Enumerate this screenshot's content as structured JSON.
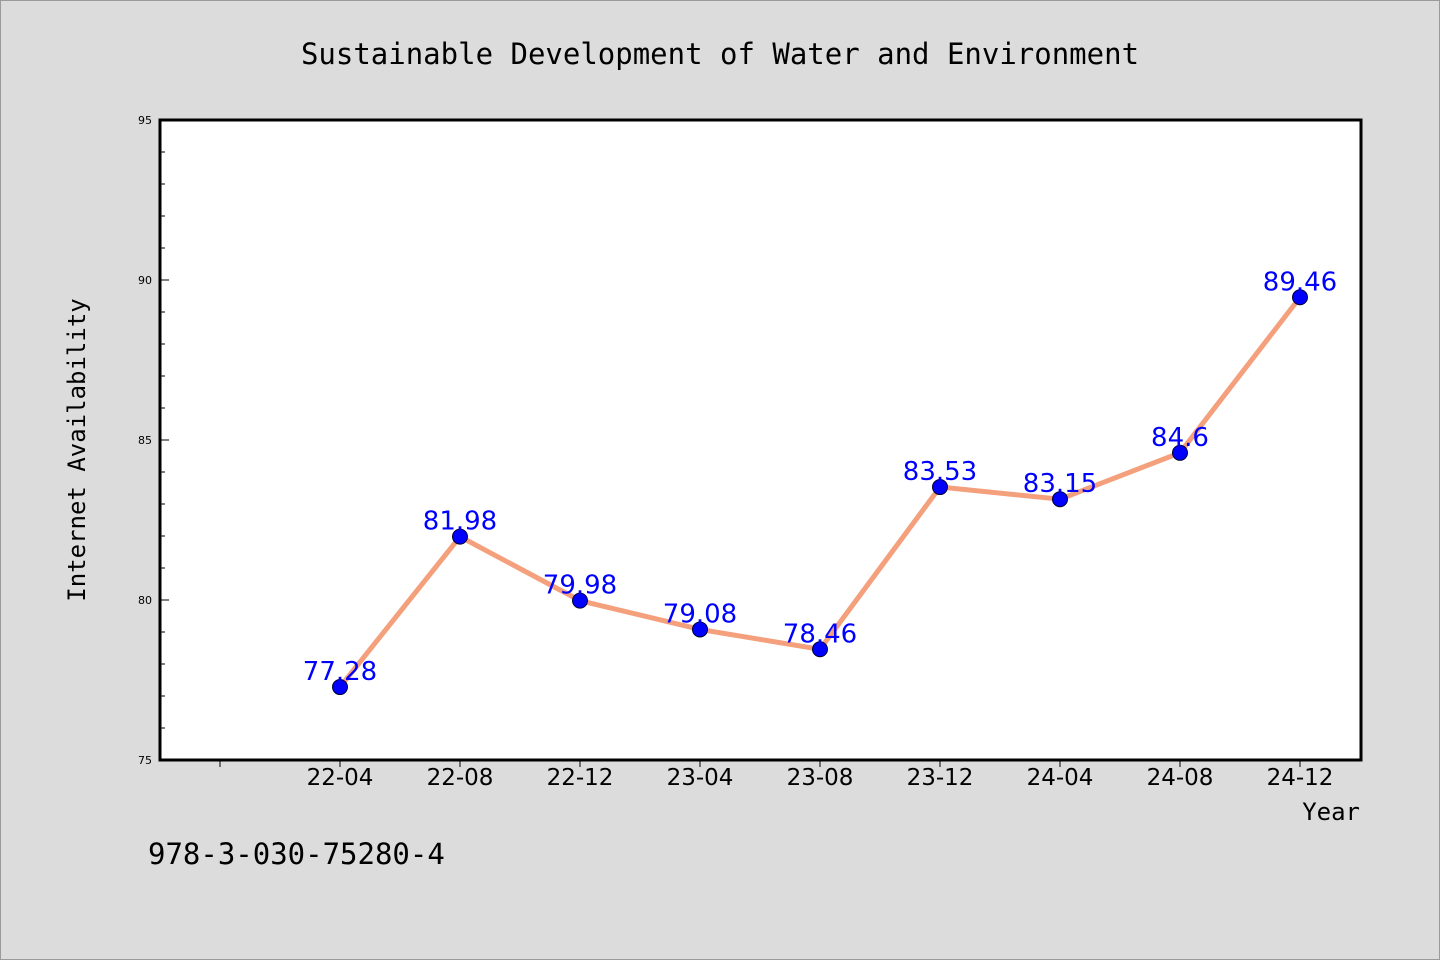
{
  "chart_data": {
    "type": "line",
    "title": "Sustainable Development of Water and Environment",
    "xlabel": "Year",
    "ylabel": "Internet Availability",
    "categories": [
      "22-04",
      "22-08",
      "22-12",
      "23-04",
      "23-08",
      "23-12",
      "24-04",
      "24-08",
      "24-12"
    ],
    "series": [
      {
        "values": [
          77.28,
          81.98,
          79.98,
          79.08,
          78.46,
          83.53,
          83.15,
          84.6,
          89.46
        ]
      }
    ],
    "data_labels": [
      "77.28",
      "81.98",
      "79.98",
      "79.08",
      "78.46",
      "83.53",
      "83.15",
      "84.6",
      "89.46"
    ],
    "ylim": [
      75,
      95
    ],
    "yticks": [
      "75",
      "80",
      "85",
      "90",
      "95"
    ],
    "grid": false,
    "legend": "none",
    "colors": {
      "line": "#f4a07c",
      "marker": "#0000ff",
      "label": "#0000ff",
      "background": "#dcdcdc",
      "plot_background": "#ffffff"
    }
  },
  "annotation": "978-3-030-75280-4"
}
